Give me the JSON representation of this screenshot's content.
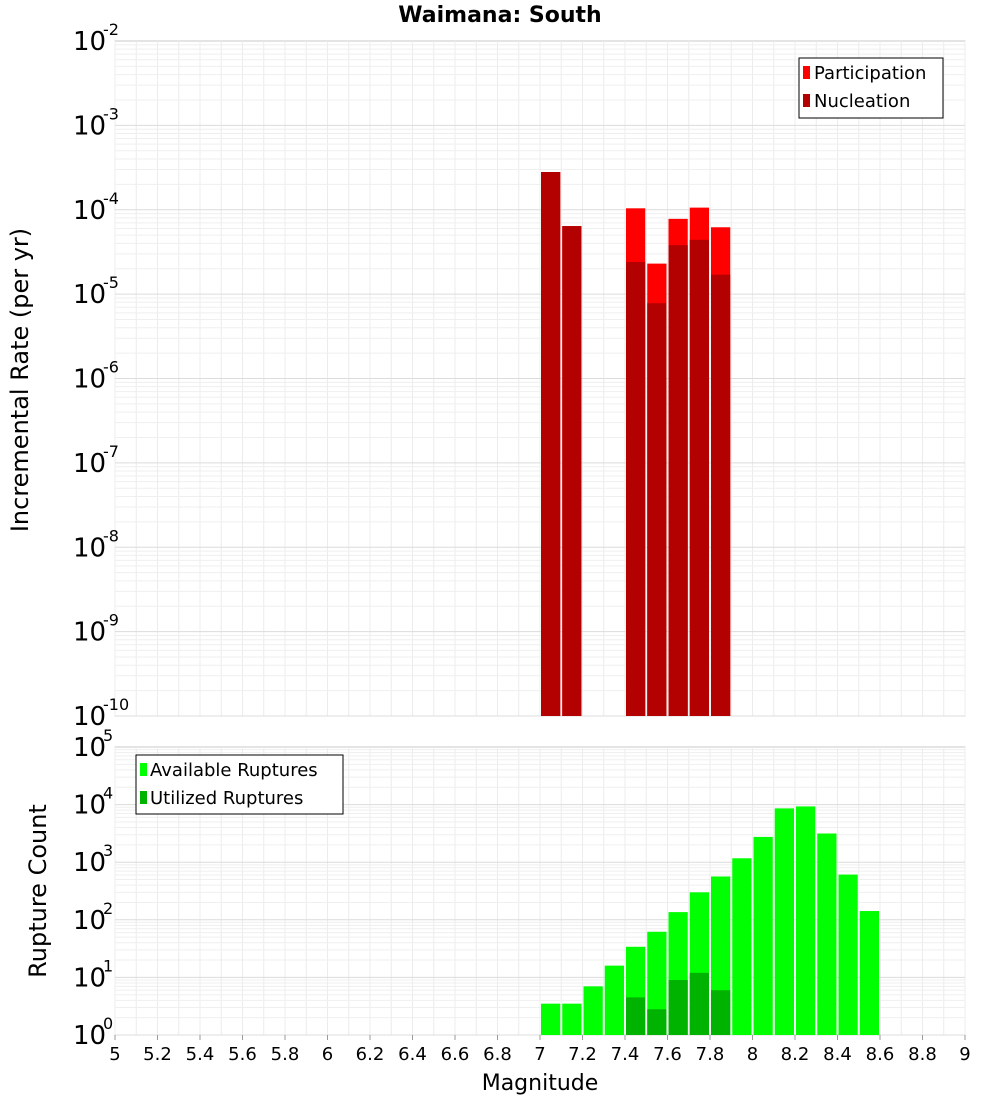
{
  "chart_data": [
    {
      "type": "bar",
      "title": "Waimana: South",
      "xlabel": "",
      "ylabel": "Incremental Rate (per yr)",
      "yscale": "log",
      "ylim_exponents": [
        -10,
        -2
      ],
      "xlim": [
        5,
        9
      ],
      "bar_width": 0.1,
      "legend_position": "top-right",
      "series": [
        {
          "name": "Participation",
          "color": "#ff0000",
          "x": [
            7.05,
            7.15,
            7.45,
            7.55,
            7.65,
            7.75,
            7.85
          ],
          "values": [
            0.00028,
            6.4e-05,
            0.000104,
            2.3e-05,
            7.8e-05,
            0.000106,
            6.2e-05
          ]
        },
        {
          "name": "Nucleation",
          "color": "#b30000",
          "x": [
            7.05,
            7.15,
            7.45,
            7.55,
            7.65,
            7.75,
            7.85
          ],
          "values": [
            0.00028,
            6.4e-05,
            2.4e-05,
            7.8e-06,
            3.8e-05,
            4.4e-05,
            1.7e-05
          ]
        }
      ]
    },
    {
      "type": "bar",
      "title": "",
      "xlabel": "Magnitude",
      "ylabel": "Rupture Count",
      "yscale": "log",
      "ylim_exponents": [
        0,
        5
      ],
      "xlim": [
        5,
        9
      ],
      "bar_width": 0.1,
      "legend_position": "top-left",
      "xticks": [
        "5",
        "5.2",
        "5.4",
        "5.6",
        "5.8",
        "6",
        "6.2",
        "6.4",
        "6.6",
        "6.8",
        "7",
        "7.2",
        "7.4",
        "7.6",
        "7.8",
        "8",
        "8.2",
        "8.4",
        "8.6",
        "8.8",
        "9"
      ],
      "series": [
        {
          "name": "Available Ruptures",
          "color": "#00ff00",
          "x": [
            7.05,
            7.15,
            7.25,
            7.35,
            7.45,
            7.55,
            7.65,
            7.75,
            7.85,
            7.95,
            8.05,
            8.15,
            8.25,
            8.35,
            8.45,
            8.55
          ],
          "values": [
            3.5,
            3.5,
            7,
            16,
            34,
            62,
            136,
            300,
            565,
            1170,
            2750,
            8600,
            9300,
            3150,
            610,
            142
          ]
        },
        {
          "name": "Utilized Ruptures",
          "color": "#00b300",
          "x": [
            7.05,
            7.15,
            7.45,
            7.55,
            7.65,
            7.75,
            7.85,
            8.15,
            8.25,
            8.35
          ],
          "values": [
            1,
            1,
            4.5,
            2.8,
            9,
            12,
            6,
            1,
            1,
            1
          ]
        }
      ]
    }
  ]
}
